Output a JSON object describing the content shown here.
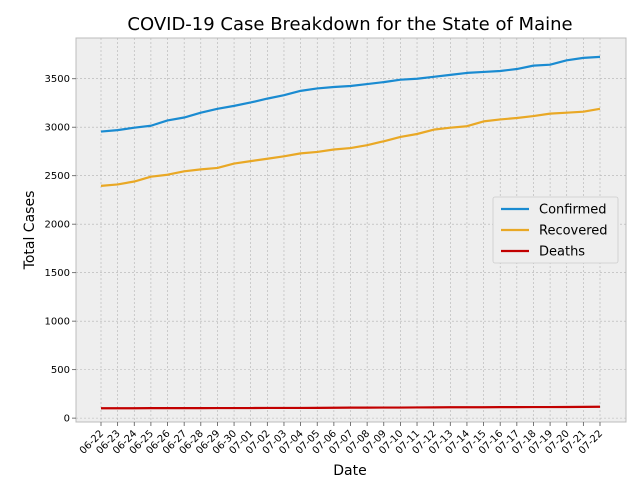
{
  "chart_data": {
    "type": "line",
    "title": "COVID-19 Case Breakdown for the State of Maine",
    "xlabel": "Date",
    "ylabel": "Total Cases",
    "categories": [
      "06-22",
      "06-23",
      "06-24",
      "06-25",
      "06-26",
      "06-27",
      "06-28",
      "06-29",
      "06-30",
      "07-01",
      "07-02",
      "07-03",
      "07-04",
      "07-05",
      "07-06",
      "07-07",
      "07-08",
      "07-09",
      "07-10",
      "07-11",
      "07-12",
      "07-13",
      "07-14",
      "07-15",
      "07-16",
      "07-17",
      "07-18",
      "07-19",
      "07-20",
      "07-21",
      "07-22"
    ],
    "ylim": [
      -40,
      3920
    ],
    "yticks": [
      0,
      500,
      1000,
      1500,
      2000,
      2500,
      3000,
      3500
    ],
    "grid": true,
    "legend": "center-right",
    "series": [
      {
        "name": "Confirmed",
        "color": "#1a8bd1",
        "values": [
          2955,
          2970,
          2995,
          3015,
          3070,
          3100,
          3150,
          3190,
          3220,
          3255,
          3295,
          3330,
          3375,
          3400,
          3415,
          3425,
          3445,
          3465,
          3490,
          3500,
          3520,
          3540,
          3560,
          3570,
          3580,
          3600,
          3635,
          3645,
          3690,
          3715,
          3725
        ]
      },
      {
        "name": "Recovered",
        "color": "#e9a825",
        "values": [
          2395,
          2410,
          2440,
          2490,
          2510,
          2545,
          2565,
          2580,
          2625,
          2650,
          2675,
          2700,
          2730,
          2745,
          2770,
          2785,
          2815,
          2855,
          2900,
          2930,
          2975,
          2995,
          3010,
          3060,
          3080,
          3095,
          3115,
          3140,
          3150,
          3160,
          3190
        ]
      },
      {
        "name": "Deaths",
        "color": "#c20000",
        "values": [
          102,
          102,
          102,
          103,
          103,
          103,
          103,
          104,
          104,
          104,
          105,
          105,
          105,
          106,
          107,
          108,
          108,
          109,
          109,
          110,
          111,
          112,
          112,
          112,
          113,
          113,
          114,
          114,
          115,
          116,
          117
        ]
      }
    ]
  }
}
